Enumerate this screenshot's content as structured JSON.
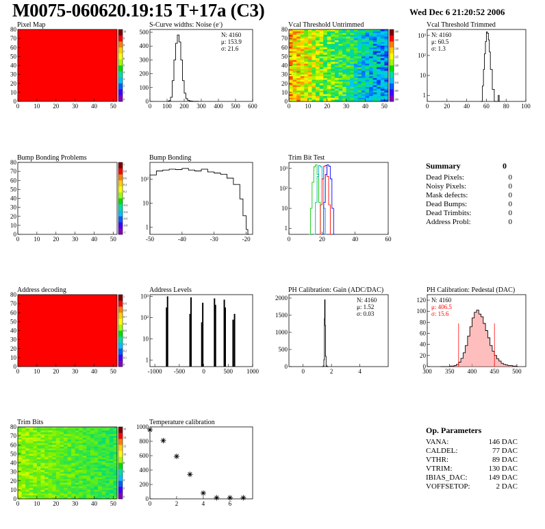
{
  "header": {
    "title": "M0075-060620.19:15 T+17a (C3)",
    "date": "Wed Dec  6 21:20:52 2006"
  },
  "summary": {
    "title": "Summary",
    "total": "0",
    "rows": [
      {
        "label": "Dead Pixels:",
        "value": "0"
      },
      {
        "label": "Noisy Pixels:",
        "value": "0"
      },
      {
        "label": "Mask defects:",
        "value": "0"
      },
      {
        "label": "Dead Bumps:",
        "value": "0"
      },
      {
        "label": "Dead Trimbits:",
        "value": "0"
      },
      {
        "label": "Address Probl:",
        "value": "0"
      }
    ]
  },
  "op_params": {
    "title": "Op. Parameters",
    "rows": [
      {
        "label": "VANA:",
        "value": "146 DAC"
      },
      {
        "label": "CALDEL:",
        "value": "77 DAC"
      },
      {
        "label": "VTHR:",
        "value": "89 DAC"
      },
      {
        "label": "VTRIM:",
        "value": "130 DAC"
      },
      {
        "label": "IBIAS_DAC:",
        "value": "149 DAC"
      },
      {
        "label": "VOFFSETOP:",
        "value": "2 DAC"
      }
    ]
  },
  "colors": {
    "red": "#ff0000",
    "blue": "#0000ff",
    "green": "#00cc00",
    "pedestal_fill": "#ff8888"
  },
  "chart_data": [
    {
      "id": "pixel-map",
      "type": "heatmap",
      "title": "Pixel Map",
      "uniform_color": "#ff0000",
      "xlim": [
        0,
        52
      ],
      "ylim": [
        0,
        80
      ],
      "xticks": [
        0,
        10,
        20,
        30,
        40,
        50
      ],
      "yticks": [
        0,
        10,
        20,
        30,
        40,
        50,
        60,
        70,
        80
      ],
      "zticks": [
        "10",
        "9",
        "8",
        "7",
        "6",
        "5",
        "4",
        "3",
        "2",
        "1",
        "0"
      ]
    },
    {
      "id": "scurve",
      "type": "line",
      "title": "S-Curve widths: Noise (e",
      "xlim": [
        0,
        600
      ],
      "ylim": [
        0,
        520
      ],
      "xticks": [
        0,
        100,
        200,
        300,
        400,
        500,
        600
      ],
      "yticks": [
        0,
        100,
        200,
        300,
        400,
        500
      ],
      "x": [
        100,
        110,
        120,
        130,
        140,
        150,
        160,
        170,
        180,
        190,
        200,
        210,
        220,
        230,
        240,
        250,
        260,
        270,
        280
      ],
      "y": [
        0,
        5,
        30,
        150,
        300,
        420,
        480,
        430,
        300,
        150,
        60,
        20,
        8,
        4,
        2,
        1,
        0,
        1,
        0
      ],
      "stats": [
        "N: 4160",
        "μ: 153.9",
        "σ: 21.6"
      ]
    },
    {
      "id": "vcal-untrimmed",
      "type": "heatmap",
      "title": "Vcal Threshold Untrimmed",
      "xlim": [
        0,
        52
      ],
      "ylim": [
        0,
        80
      ],
      "xticks": [
        0,
        10,
        20,
        30,
        40,
        50
      ],
      "yticks": [
        0,
        10,
        20,
        30,
        40,
        50,
        60,
        70,
        80
      ],
      "zticks": [
        "140",
        "135",
        "130",
        "125",
        "120",
        "115",
        "110",
        "105",
        "100"
      ]
    },
    {
      "id": "vcal-trimmed",
      "type": "line",
      "title": "Vcal Threshold Trimmed",
      "log_y": true,
      "xlim": [
        0,
        100
      ],
      "ylim": [
        0.5,
        2000
      ],
      "xticks": [
        0,
        20,
        40,
        60,
        80,
        100
      ],
      "yticks": [
        1,
        10,
        100,
        1000
      ],
      "ytick_labels": [
        "1",
        "10",
        "10²",
        "10³"
      ],
      "x": [
        54,
        56,
        57,
        58,
        59,
        60,
        61,
        62,
        63,
        64,
        66,
        68,
        72,
        73
      ],
      "y": [
        0.5,
        3,
        20,
        120,
        500,
        1500,
        1300,
        600,
        150,
        20,
        2,
        0.5,
        1,
        0.5
      ],
      "stats": [
        "N: 4160",
        "μ: 60.5",
        "σ:  1.3"
      ]
    },
    {
      "id": "bump-problems",
      "type": "heatmap",
      "title": "Bump Bonding Problems",
      "uniform_color": "#ffffff",
      "xlim": [
        0,
        52
      ],
      "ylim": [
        0,
        80
      ],
      "xticks": [
        0,
        10,
        20,
        30,
        40,
        50
      ],
      "yticks": [
        0,
        10,
        20,
        30,
        40,
        50,
        60,
        70,
        80
      ],
      "zticks": [
        "1",
        "0.8",
        "0.6",
        "0.4",
        "0.2",
        "0",
        "-0.2",
        "-0.4",
        "-0.6",
        "-0.8",
        "-1"
      ]
    },
    {
      "id": "bump-bonding",
      "type": "line",
      "title": "Bump Bonding",
      "log_y": true,
      "xlim": [
        -50,
        -18
      ],
      "ylim": [
        0.5,
        500
      ],
      "xticks": [
        -50,
        -40,
        -30,
        -20
      ],
      "yticks": [
        1,
        10,
        100
      ],
      "ytick_labels": [
        "1",
        "10",
        "10²"
      ],
      "x": [
        -50,
        -48,
        -46,
        -44,
        -42,
        -40,
        -38,
        -36,
        -34,
        -32,
        -30,
        -28,
        -26,
        -24,
        -22,
        -21,
        -20,
        -19.5
      ],
      "y": [
        150,
        220,
        240,
        260,
        250,
        280,
        240,
        220,
        260,
        200,
        180,
        160,
        110,
        60,
        15,
        3,
        0.8,
        0.5
      ]
    },
    {
      "id": "trim-bit-test",
      "type": "line",
      "title": "Trim Bit Test",
      "log_y": true,
      "xlim": [
        0,
        60
      ],
      "ylim": [
        0.5,
        2000
      ],
      "xticks": [
        0,
        20,
        40,
        60
      ],
      "yticks": [
        1,
        10,
        100,
        1000
      ],
      "ytick_labels": [
        "1",
        "10",
        "10²",
        "10³"
      ],
      "series": [
        {
          "color": "#00cc00",
          "x": [
            12,
            13,
            14,
            15,
            16,
            17,
            18,
            19
          ],
          "y": [
            0.5,
            10,
            200,
            1200,
            1500,
            500,
            20,
            0.5
          ]
        },
        {
          "color": "#00aacc",
          "x": [
            15,
            16,
            17,
            18,
            19,
            20,
            21,
            22
          ],
          "y": [
            0.5,
            20,
            400,
            1400,
            1200,
            300,
            10,
            0.5
          ]
        },
        {
          "color": "#ff0000",
          "x": [
            18,
            19,
            20,
            21,
            22,
            23,
            24,
            25
          ],
          "y": [
            0.5,
            15,
            300,
            1300,
            1400,
            400,
            15,
            0.5
          ]
        },
        {
          "color": "#0000ff",
          "x": [
            20,
            21,
            22,
            23,
            24,
            25,
            26,
            27
          ],
          "y": [
            0.5,
            20,
            500,
            1500,
            1300,
            300,
            10,
            0.5
          ]
        }
      ]
    },
    {
      "id": "address-decoding",
      "type": "heatmap",
      "title": "Address decoding",
      "uniform_color": "#ff0000",
      "xlim": [
        0,
        52
      ],
      "ylim": [
        0,
        80
      ],
      "xticks": [
        0,
        10,
        20,
        30,
        40,
        50
      ],
      "yticks": [
        0,
        10,
        20,
        30,
        40,
        50,
        60,
        70,
        80
      ],
      "zticks": [
        "1",
        "0.9",
        "0.8",
        "0.7",
        "0.6",
        "0.5",
        "0.4",
        "0.3",
        "0.2",
        "0.1",
        "0"
      ]
    },
    {
      "id": "address-levels",
      "type": "bar",
      "title": "Address Levels",
      "log_y": true,
      "xlim": [
        -1100,
        1000
      ],
      "ylim": [
        0.5,
        1200
      ],
      "xticks": [
        -1000,
        -500,
        0,
        500,
        1000
      ],
      "yticks": [
        1,
        10,
        100,
        1000
      ],
      "ytick_labels": [
        "1",
        "10",
        "10²",
        "10³"
      ],
      "x": [
        -760,
        -740,
        -280,
        -260,
        -40,
        -20,
        220,
        240,
        420,
        440,
        600,
        630
      ],
      "y": [
        300,
        1000,
        150,
        900,
        60,
        500,
        800,
        400,
        700,
        300,
        80,
        150
      ]
    },
    {
      "id": "ph-gain",
      "type": "line",
      "title": "PH Calibration: Gain (ADC/DAC)",
      "xlim": [
        -1,
        6
      ],
      "ylim": [
        0,
        2100
      ],
      "xticks": [
        0,
        2,
        4
      ],
      "yticks": [
        0,
        500,
        1000,
        1500,
        2000
      ],
      "x": [
        1.35,
        1.42,
        1.46,
        1.5,
        1.52,
        1.55,
        1.58,
        1.62,
        1.7
      ],
      "y": [
        0,
        20,
        200,
        1400,
        1950,
        1200,
        300,
        20,
        0
      ],
      "stats": [
        "N: 4160",
        "μ: 1.52",
        "σ: 0.03"
      ]
    },
    {
      "id": "ph-pedestal",
      "type": "area",
      "title": "PH Calibration: Pedestal (DAC)",
      "xlim": [
        300,
        520
      ],
      "ylim": [
        0,
        130
      ],
      "xticks": [
        300,
        350,
        400,
        450,
        500
      ],
      "yticks": [
        0,
        20,
        40,
        60,
        80,
        100,
        120
      ],
      "x": [
        330,
        340,
        350,
        360,
        365,
        370,
        375,
        380,
        385,
        390,
        395,
        400,
        405,
        410,
        415,
        420,
        425,
        430,
        435,
        440,
        445,
        450,
        455,
        460,
        465,
        470,
        475,
        480,
        490,
        500
      ],
      "y": [
        0,
        0,
        1,
        2,
        4,
        8,
        15,
        25,
        38,
        55,
        72,
        88,
        98,
        102,
        95,
        90,
        78,
        65,
        52,
        38,
        28,
        20,
        14,
        10,
        6,
        4,
        3,
        2,
        1,
        0
      ],
      "stats": [
        "N: 4160",
        "μ: 406.5",
        "σ: 15.6"
      ],
      "cut_lines": [
        370,
        450
      ]
    },
    {
      "id": "trim-bits",
      "type": "heatmap",
      "title": "Trim Bits",
      "xlim": [
        0,
        52
      ],
      "ylim": [
        0,
        80
      ],
      "xticks": [
        0,
        10,
        20,
        30,
        40,
        50
      ],
      "yticks": [
        0,
        10,
        20,
        30,
        40,
        50,
        60,
        70,
        80
      ],
      "zticks": [
        "16",
        "14",
        "12",
        "10",
        "8",
        "6",
        "4",
        "2",
        "0"
      ]
    },
    {
      "id": "temp-cal",
      "type": "scatter",
      "title": "Temperature calibration",
      "xlim": [
        0,
        7.7
      ],
      "ylim": [
        0,
        1000
      ],
      "xticks": [
        0,
        2,
        4,
        6
      ],
      "yticks": [
        0,
        200,
        400,
        600,
        800,
        1000
      ],
      "x": [
        0,
        1,
        2,
        3,
        4,
        5,
        6,
        7
      ],
      "y": [
        960,
        810,
        590,
        340,
        80,
        15,
        15,
        15
      ]
    }
  ]
}
